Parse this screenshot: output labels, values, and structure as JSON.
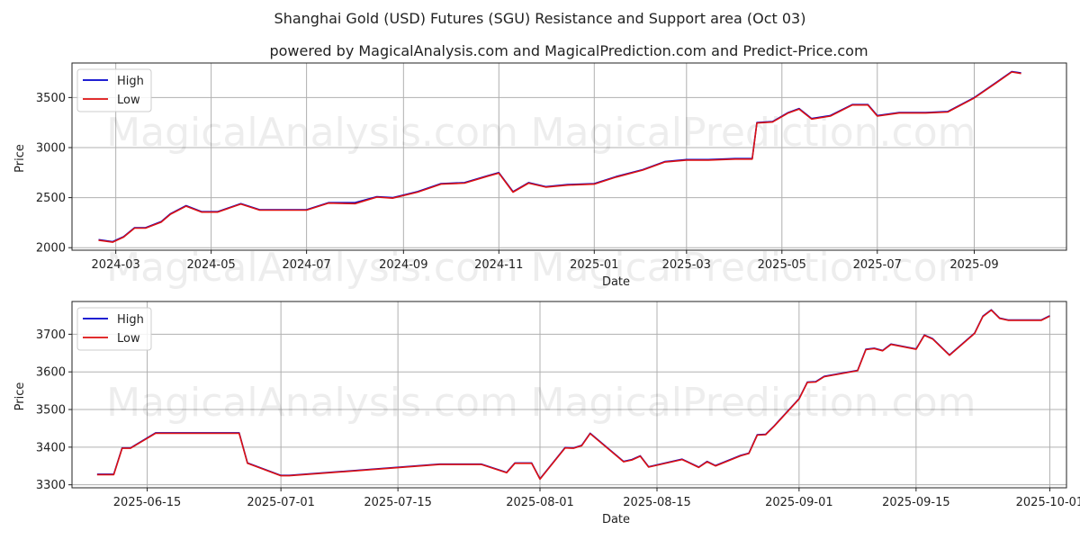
{
  "title": "Shanghai Gold (USD) Futures (SGU) Resistance and Support area (Oct 03)",
  "subtitle": "powered by MagicalAnalysis.com and MagicalPrediction.com and Predict-Price.com",
  "watermarks": [
    "MagicalAnalysis.com",
    "MagicalPrediction.com"
  ],
  "colors": {
    "high": "#0000cc",
    "low": "#dd1111"
  },
  "chart_data": [
    {
      "type": "line",
      "xlabel": "Date",
      "ylabel": "Price",
      "xlim": [
        "2024-02-02",
        "2025-10-30"
      ],
      "ylim": [
        1975,
        3845
      ],
      "grid": true,
      "legend": "top-left",
      "xticks": [
        {
          "date": "2024-03-01",
          "label": "2024-03"
        },
        {
          "date": "2024-05-01",
          "label": "2024-05"
        },
        {
          "date": "2024-07-01",
          "label": "2024-07"
        },
        {
          "date": "2024-09-01",
          "label": "2024-09"
        },
        {
          "date": "2024-11-01",
          "label": "2024-11"
        },
        {
          "date": "2025-01-01",
          "label": "2025-01"
        },
        {
          "date": "2025-03-01",
          "label": "2025-03"
        },
        {
          "date": "2025-05-01",
          "label": "2025-05"
        },
        {
          "date": "2025-07-01",
          "label": "2025-07"
        },
        {
          "date": "2025-09-01",
          "label": "2025-09"
        }
      ],
      "yticks": [
        2000,
        2500,
        3000,
        3500
      ],
      "series": [
        {
          "name": "High",
          "color": "#0000cc",
          "x": [
            "2024-02-19",
            "2024-02-28",
            "2024-03-06",
            "2024-03-13",
            "2024-03-20",
            "2024-03-30",
            "2024-04-05",
            "2024-04-15",
            "2024-04-25",
            "2024-05-05",
            "2024-05-20",
            "2024-06-01",
            "2024-06-15",
            "2024-07-01",
            "2024-07-15",
            "2024-08-01",
            "2024-08-15",
            "2024-08-25",
            "2024-09-10",
            "2024-09-25",
            "2024-10-10",
            "2024-10-25",
            "2024-11-01",
            "2024-11-10",
            "2024-11-20",
            "2024-12-01",
            "2024-12-15",
            "2025-01-01",
            "2025-01-15",
            "2025-02-01",
            "2025-02-15",
            "2025-03-01",
            "2025-03-15",
            "2025-04-01",
            "2025-04-12",
            "2025-04-15",
            "2025-04-25",
            "2025-05-05",
            "2025-05-12",
            "2025-05-20",
            "2025-06-01",
            "2025-06-15",
            "2025-06-25",
            "2025-07-01",
            "2025-07-15",
            "2025-08-01",
            "2025-08-15",
            "2025-09-01",
            "2025-09-15",
            "2025-09-25",
            "2025-10-01"
          ],
          "values": [
            2080,
            2060,
            2110,
            2200,
            2200,
            2260,
            2340,
            2420,
            2360,
            2360,
            2440,
            2380,
            2380,
            2380,
            2450,
            2450,
            2510,
            2500,
            2560,
            2640,
            2650,
            2720,
            2750,
            2560,
            2650,
            2610,
            2630,
            2640,
            2710,
            2780,
            2860,
            2880,
            2880,
            2890,
            2890,
            3250,
            3260,
            3350,
            3390,
            3290,
            3320,
            3430,
            3430,
            3320,
            3350,
            3350,
            3360,
            3500,
            3650,
            3760,
            3745
          ]
        },
        {
          "name": "Low",
          "color": "#dd1111",
          "x": [
            "2024-02-19",
            "2024-02-28",
            "2024-03-06",
            "2024-03-13",
            "2024-03-20",
            "2024-03-30",
            "2024-04-05",
            "2024-04-15",
            "2024-04-25",
            "2024-05-05",
            "2024-05-20",
            "2024-06-01",
            "2024-06-15",
            "2024-07-01",
            "2024-07-15",
            "2024-08-01",
            "2024-08-15",
            "2024-08-25",
            "2024-09-10",
            "2024-09-25",
            "2024-10-10",
            "2024-10-25",
            "2024-11-01",
            "2024-11-10",
            "2024-11-20",
            "2024-12-01",
            "2024-12-15",
            "2025-01-01",
            "2025-01-15",
            "2025-02-01",
            "2025-02-15",
            "2025-03-01",
            "2025-03-15",
            "2025-04-01",
            "2025-04-12",
            "2025-04-15",
            "2025-04-25",
            "2025-05-05",
            "2025-05-12",
            "2025-05-20",
            "2025-06-01",
            "2025-06-15",
            "2025-06-25",
            "2025-07-01",
            "2025-07-15",
            "2025-08-01",
            "2025-08-15",
            "2025-09-01",
            "2025-09-15",
            "2025-09-25",
            "2025-10-01"
          ],
          "values": [
            2075,
            2055,
            2105,
            2195,
            2195,
            2255,
            2335,
            2415,
            2355,
            2355,
            2435,
            2375,
            2375,
            2375,
            2445,
            2440,
            2505,
            2495,
            2555,
            2635,
            2645,
            2715,
            2745,
            2555,
            2645,
            2605,
            2625,
            2635,
            2705,
            2775,
            2855,
            2875,
            2875,
            2885,
            2885,
            3245,
            3255,
            3345,
            3385,
            3285,
            3315,
            3425,
            3425,
            3315,
            3345,
            3345,
            3355,
            3495,
            3645,
            3755,
            3740
          ]
        }
      ]
    },
    {
      "type": "line",
      "xlabel": "Date",
      "ylabel": "Price",
      "xlim": [
        "2025-06-06",
        "2025-10-03"
      ],
      "ylim": [
        3292,
        3787
      ],
      "grid": true,
      "legend": "top-left",
      "xticks": [
        {
          "date": "2025-06-15",
          "label": "2025-06-15"
        },
        {
          "date": "2025-07-01",
          "label": "2025-07-01"
        },
        {
          "date": "2025-07-15",
          "label": "2025-07-15"
        },
        {
          "date": "2025-08-01",
          "label": "2025-08-01"
        },
        {
          "date": "2025-08-15",
          "label": "2025-08-15"
        },
        {
          "date": "2025-09-01",
          "label": "2025-09-01"
        },
        {
          "date": "2025-09-15",
          "label": "2025-09-15"
        },
        {
          "date": "2025-10-01",
          "label": "2025-10-01"
        }
      ],
      "yticks": [
        3300,
        3400,
        3500,
        3600,
        3700
      ],
      "series": [
        {
          "name": "High",
          "color": "#0000cc",
          "x": [
            "2025-06-09",
            "2025-06-11",
            "2025-06-12",
            "2025-06-13",
            "2025-06-16",
            "2025-06-25",
            "2025-06-26",
            "2025-06-27",
            "2025-07-01",
            "2025-07-02",
            "2025-07-20",
            "2025-07-25",
            "2025-07-28",
            "2025-07-29",
            "2025-07-31",
            "2025-08-01",
            "2025-08-04",
            "2025-08-05",
            "2025-08-06",
            "2025-08-07",
            "2025-08-11",
            "2025-08-12",
            "2025-08-13",
            "2025-08-14",
            "2025-08-18",
            "2025-08-20",
            "2025-08-21",
            "2025-08-22",
            "2025-08-25",
            "2025-08-26",
            "2025-08-27",
            "2025-08-28",
            "2025-08-29",
            "2025-09-01",
            "2025-09-02",
            "2025-09-03",
            "2025-09-04",
            "2025-09-08",
            "2025-09-09",
            "2025-09-10",
            "2025-09-11",
            "2025-09-12",
            "2025-09-15",
            "2025-09-16",
            "2025-09-17",
            "2025-09-19",
            "2025-09-22",
            "2025-09-23",
            "2025-09-24",
            "2025-09-25",
            "2025-09-26",
            "2025-09-30",
            "2025-10-01"
          ],
          "values": [
            3328,
            3328,
            3398,
            3398,
            3438,
            3438,
            3438,
            3358,
            3325,
            3325,
            3355,
            3355,
            3333,
            3358,
            3358,
            3316,
            3399,
            3398,
            3405,
            3437,
            3362,
            3367,
            3377,
            3348,
            3368,
            3347,
            3362,
            3351,
            3378,
            3384,
            3433,
            3434,
            3456,
            3529,
            3573,
            3574,
            3588,
            3604,
            3660,
            3663,
            3657,
            3674,
            3661,
            3698,
            3688,
            3645,
            3703,
            3748,
            3765,
            3743,
            3738,
            3738,
            3749
          ]
        },
        {
          "name": "Low",
          "color": "#dd1111",
          "x": [
            "2025-06-09",
            "2025-06-11",
            "2025-06-12",
            "2025-06-13",
            "2025-06-16",
            "2025-06-25",
            "2025-06-26",
            "2025-06-27",
            "2025-07-01",
            "2025-07-02",
            "2025-07-20",
            "2025-07-25",
            "2025-07-28",
            "2025-07-29",
            "2025-07-31",
            "2025-08-01",
            "2025-08-04",
            "2025-08-05",
            "2025-08-06",
            "2025-08-07",
            "2025-08-11",
            "2025-08-12",
            "2025-08-13",
            "2025-08-14",
            "2025-08-18",
            "2025-08-20",
            "2025-08-21",
            "2025-08-22",
            "2025-08-25",
            "2025-08-26",
            "2025-08-27",
            "2025-08-28",
            "2025-08-29",
            "2025-09-01",
            "2025-09-02",
            "2025-09-03",
            "2025-09-04",
            "2025-09-08",
            "2025-09-09",
            "2025-09-10",
            "2025-09-11",
            "2025-09-12",
            "2025-09-15",
            "2025-09-16",
            "2025-09-17",
            "2025-09-19",
            "2025-09-22",
            "2025-09-23",
            "2025-09-24",
            "2025-09-25",
            "2025-09-26",
            "2025-09-30",
            "2025-10-01"
          ],
          "values": [
            3327,
            3327,
            3397,
            3397,
            3437,
            3437,
            3437,
            3357,
            3324,
            3324,
            3354,
            3354,
            3332,
            3357,
            3357,
            3315,
            3398,
            3397,
            3404,
            3436,
            3361,
            3366,
            3376,
            3347,
            3367,
            3346,
            3361,
            3350,
            3377,
            3383,
            3432,
            3433,
            3455,
            3528,
            3572,
            3573,
            3587,
            3603,
            3659,
            3662,
            3656,
            3673,
            3660,
            3697,
            3687,
            3644,
            3702,
            3747,
            3764,
            3742,
            3737,
            3737,
            3748
          ]
        }
      ]
    }
  ]
}
